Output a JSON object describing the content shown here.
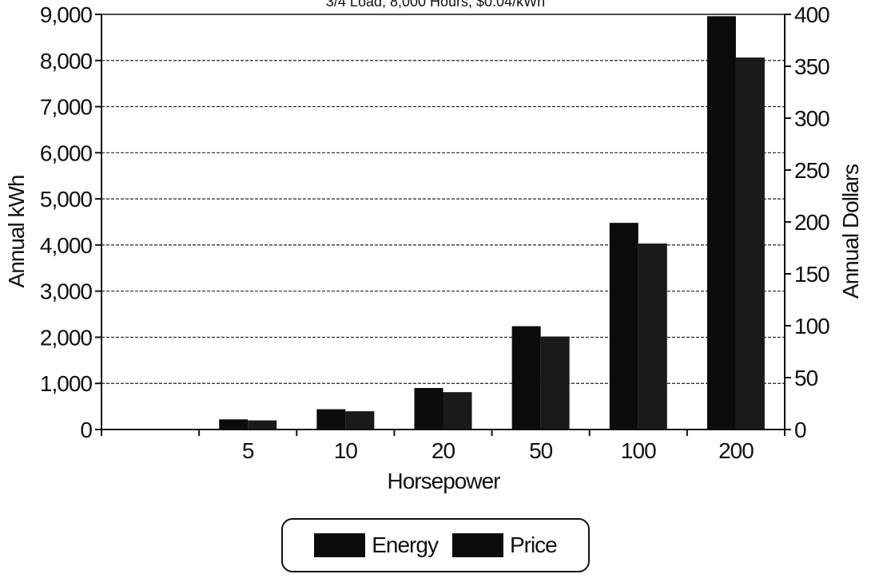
{
  "chart_data": {
    "type": "bar",
    "subtitle": "3/4 Load, 8,000 Hours, $0.04/kWh",
    "categories": [
      "5",
      "10",
      "20",
      "50",
      "100",
      "200"
    ],
    "series": [
      {
        "name": "Energy",
        "axis": "left",
        "values": [
          220,
          440,
          900,
          2240,
          4480,
          8960
        ]
      },
      {
        "name": "Price",
        "axis": "right",
        "values": [
          8.8,
          17.6,
          36,
          89.6,
          179.2,
          358.4
        ]
      }
    ],
    "xlabel": "Horsepower",
    "ylabel": "Annual kWh",
    "y2label": "Annual Dollars",
    "ylim": [
      0,
      9000
    ],
    "y2lim": [
      0,
      400
    ],
    "yticks": [
      "0",
      "1,000",
      "2,000",
      "3,000",
      "4,000",
      "5,000",
      "6,000",
      "7,000",
      "8,000",
      "9,000"
    ],
    "y2ticks": [
      "0",
      "50",
      "100",
      "150",
      "200",
      "250",
      "300",
      "350",
      "400"
    ],
    "grid": true,
    "legend_position": "bottom",
    "colors": {
      "Energy": "#0b0b0b",
      "Price": "#1a1a1a"
    }
  }
}
